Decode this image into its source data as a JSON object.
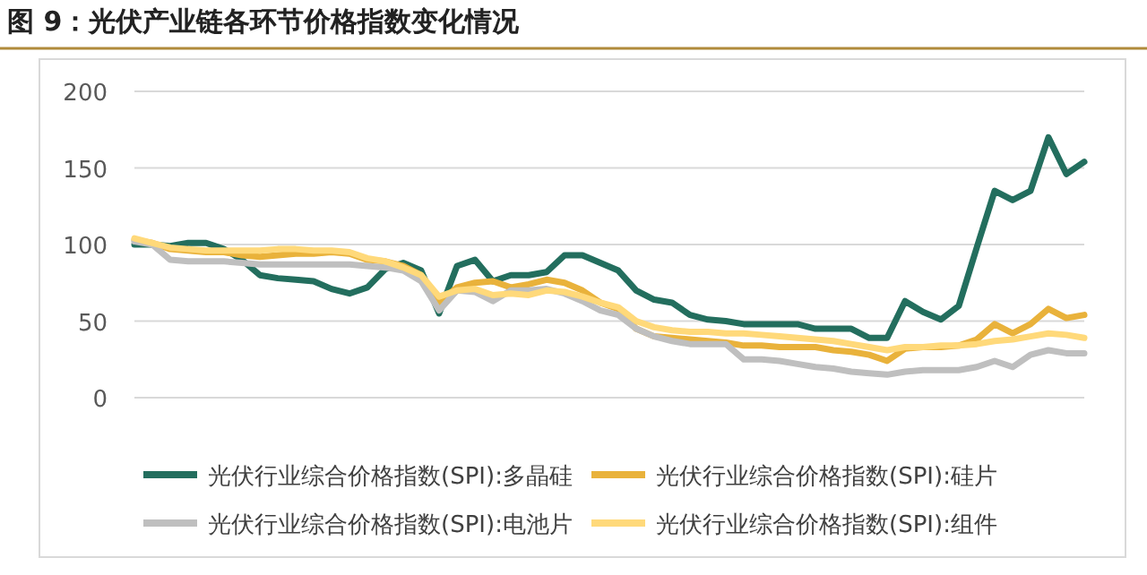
{
  "chart_data": {
    "type": "line",
    "title": "图 9：光伏产业链各环节价格指数变化情况",
    "categories": [
      null,
      null,
      null,
      null,
      null,
      null,
      null,
      null,
      null,
      null,
      null,
      null,
      null,
      null,
      null,
      null,
      null,
      null,
      null,
      null,
      null,
      null,
      null,
      null,
      null,
      null,
      null,
      null,
      null,
      null,
      null,
      null,
      null,
      null,
      null,
      null,
      null,
      null,
      null,
      null,
      null,
      null,
      null,
      null,
      null,
      null,
      null,
      null,
      null,
      null,
      null,
      null,
      null,
      null
    ],
    "ylim": [
      0,
      200
    ],
    "yticks": [
      0,
      50,
      100,
      150,
      200
    ],
    "grid": "y",
    "legend": "bottom",
    "line_style": "solid",
    "marker": "none",
    "series": [
      {
        "name": "光伏行业综合价格指数(SPI):多晶硅",
        "color": "#236e5e",
        "values": [
          100,
          100,
          99,
          101,
          101,
          97,
          90,
          80,
          78,
          77,
          76,
          71,
          68,
          72,
          84,
          88,
          83,
          55,
          86,
          90,
          76,
          80,
          80,
          82,
          93,
          93,
          88,
          83,
          70,
          64,
          62,
          54,
          51,
          50,
          48,
          48,
          48,
          48,
          45,
          45,
          45,
          39,
          39,
          63,
          56,
          51,
          60,
          98,
          135,
          129,
          135,
          170,
          146,
          154
        ]
      },
      {
        "name": "光伏行业综合价格指数(SPI):硅片",
        "color": "#e9b23b",
        "values": [
          103,
          101,
          97,
          96,
          95,
          95,
          93,
          92,
          93,
          94,
          94,
          95,
          94,
          90,
          89,
          86,
          80,
          62,
          72,
          75,
          76,
          72,
          74,
          77,
          75,
          70,
          62,
          58,
          45,
          40,
          39,
          38,
          37,
          36,
          34,
          34,
          33,
          33,
          33,
          31,
          30,
          28,
          24,
          32,
          33,
          33,
          34,
          38,
          48,
          42,
          48,
          58,
          52,
          54
        ]
      },
      {
        "name": "光伏行业综合价格指数(SPI):电池片",
        "color": "#bfbfbf",
        "values": [
          102,
          100,
          90,
          89,
          89,
          89,
          88,
          87,
          87,
          87,
          87,
          87,
          87,
          86,
          85,
          83,
          76,
          57,
          70,
          69,
          63,
          70,
          70,
          71,
          68,
          63,
          57,
          54,
          45,
          40,
          37,
          35,
          35,
          35,
          25,
          25,
          24,
          22,
          20,
          19,
          17,
          16,
          15,
          17,
          18,
          18,
          18,
          20,
          24,
          20,
          28,
          31,
          29,
          29
        ]
      },
      {
        "name": "光伏行业综合价格指数(SPI):组件",
        "color": "#ffd97a",
        "values": [
          104,
          101,
          98,
          97,
          96,
          96,
          96,
          96,
          97,
          97,
          96,
          96,
          95,
          91,
          89,
          85,
          80,
          66,
          70,
          71,
          67,
          68,
          67,
          70,
          69,
          66,
          62,
          59,
          50,
          46,
          44,
          43,
          43,
          42,
          42,
          41,
          40,
          39,
          38,
          37,
          35,
          33,
          31,
          33,
          33,
          34,
          34,
          35,
          37,
          38,
          40,
          42,
          41,
          39
        ]
      }
    ]
  }
}
